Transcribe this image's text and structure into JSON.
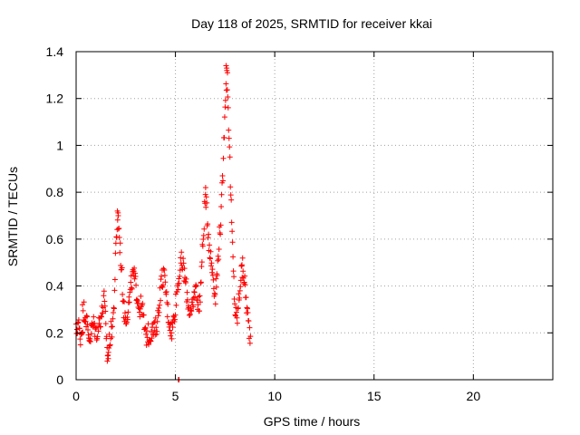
{
  "chart_data": {
    "type": "scatter",
    "title": "Day 118 of 2025, SRMTID for receiver kkai",
    "xlabel": "GPS time / hours",
    "ylabel": "SRMTID / TECUs",
    "xlim": [
      0,
      24
    ],
    "ylim": [
      0,
      1.4
    ],
    "x_ticks": [
      0,
      5,
      10,
      15,
      20
    ],
    "x_tick_labels": [
      "0",
      "5",
      "10",
      "15",
      "20"
    ],
    "y_ticks": [
      0,
      0.2,
      0.4,
      0.6,
      0.8,
      1.0,
      1.2,
      1.4
    ],
    "y_tick_labels": [
      "0",
      "0.2",
      "0.4",
      "0.6",
      "0.8",
      "1",
      "1.2",
      "1.4"
    ],
    "grid": true,
    "marker": "+",
    "series": [
      {
        "name": "SRMTID",
        "color": "#ff0000",
        "profile": [
          [
            0.0,
            0.2
          ],
          [
            0.1,
            0.25
          ],
          [
            0.2,
            0.18
          ],
          [
            0.3,
            0.22
          ],
          [
            0.4,
            0.3
          ],
          [
            0.5,
            0.27
          ],
          [
            0.6,
            0.2
          ],
          [
            0.7,
            0.18
          ],
          [
            0.8,
            0.22
          ],
          [
            0.9,
            0.24
          ],
          [
            1.0,
            0.2
          ],
          [
            1.1,
            0.22
          ],
          [
            1.2,
            0.26
          ],
          [
            1.3,
            0.28
          ],
          [
            1.4,
            0.35
          ],
          [
            1.5,
            0.22
          ],
          [
            1.6,
            0.1
          ],
          [
            1.7,
            0.18
          ],
          [
            1.8,
            0.22
          ],
          [
            1.9,
            0.3
          ],
          [
            2.0,
            0.55
          ],
          [
            2.1,
            0.71
          ],
          [
            2.2,
            0.58
          ],
          [
            2.3,
            0.45
          ],
          [
            2.4,
            0.3
          ],
          [
            2.5,
            0.26
          ],
          [
            2.6,
            0.3
          ],
          [
            2.7,
            0.35
          ],
          [
            2.8,
            0.42
          ],
          [
            2.9,
            0.45
          ],
          [
            3.0,
            0.4
          ],
          [
            3.1,
            0.35
          ],
          [
            3.2,
            0.3
          ],
          [
            3.3,
            0.32
          ],
          [
            3.4,
            0.25
          ],
          [
            3.5,
            0.18
          ],
          [
            3.6,
            0.2
          ],
          [
            3.7,
            0.18
          ],
          [
            3.8,
            0.22
          ],
          [
            3.9,
            0.2
          ],
          [
            4.0,
            0.22
          ],
          [
            4.1,
            0.25
          ],
          [
            4.2,
            0.35
          ],
          [
            4.3,
            0.42
          ],
          [
            4.4,
            0.45
          ],
          [
            4.5,
            0.4
          ],
          [
            4.6,
            0.3
          ],
          [
            4.7,
            0.25
          ],
          [
            4.8,
            0.2
          ],
          [
            4.9,
            0.25
          ],
          [
            5.0,
            0.32
          ],
          [
            5.1,
            0.4
          ],
          [
            5.2,
            0.45
          ],
          [
            5.3,
            0.5
          ],
          [
            5.4,
            0.48
          ],
          [
            5.5,
            0.42
          ],
          [
            5.6,
            0.35
          ],
          [
            5.7,
            0.3
          ],
          [
            5.8,
            0.28
          ],
          [
            5.9,
            0.32
          ],
          [
            6.0,
            0.4
          ],
          [
            6.1,
            0.35
          ],
          [
            6.2,
            0.3
          ],
          [
            6.3,
            0.45
          ],
          [
            6.4,
            0.6
          ],
          [
            6.5,
            0.78
          ],
          [
            6.6,
            0.7
          ],
          [
            6.7,
            0.58
          ],
          [
            6.8,
            0.5
          ],
          [
            6.9,
            0.45
          ],
          [
            7.0,
            0.35
          ],
          [
            7.1,
            0.45
          ],
          [
            7.2,
            0.6
          ],
          [
            7.3,
            0.7
          ],
          [
            7.4,
            0.9
          ],
          [
            7.5,
            1.2
          ],
          [
            7.6,
            1.3
          ],
          [
            7.7,
            1.05
          ],
          [
            7.8,
            0.75
          ],
          [
            7.9,
            0.5
          ],
          [
            8.0,
            0.3
          ],
          [
            8.1,
            0.25
          ],
          [
            8.2,
            0.35
          ],
          [
            8.3,
            0.45
          ],
          [
            8.4,
            0.48
          ],
          [
            8.5,
            0.4
          ],
          [
            8.6,
            0.3
          ],
          [
            8.7,
            0.22
          ],
          [
            8.8,
            0.18
          ]
        ],
        "extra_points": [
          [
            5.15,
            0.0
          ],
          [
            5.18,
            0.0
          ],
          [
            1.57,
            0.08
          ],
          [
            1.62,
            0.09
          ],
          [
            2.08,
            0.72
          ],
          [
            2.12,
            0.7
          ],
          [
            7.55,
            1.34
          ],
          [
            7.58,
            1.33
          ],
          [
            7.62,
            1.31
          ],
          [
            6.52,
            0.82
          ],
          [
            0.32,
            0.32
          ],
          [
            8.35,
            0.49
          ]
        ]
      }
    ]
  }
}
